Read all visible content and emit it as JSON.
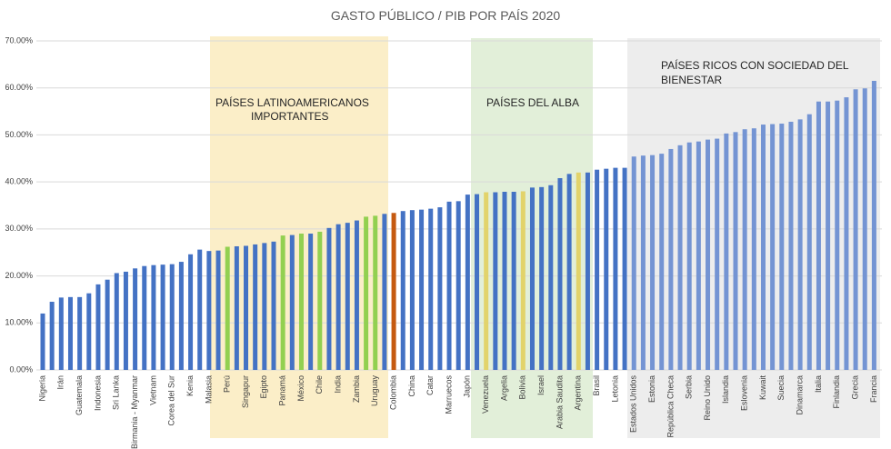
{
  "chart_data": {
    "type": "bar",
    "title": "GASTO PÚBLICO / PIB POR PAÍS 2020",
    "categories": [
      "Nigeria",
      null,
      "Irán",
      null,
      "Guatemala",
      null,
      "Indonesia",
      null,
      "Sri Lanka",
      null,
      "Birmania - Myanmar",
      null,
      "Vietnam",
      null,
      "Corea del Sur",
      null,
      "Kenia",
      null,
      "Malasia",
      null,
      "Perú",
      null,
      "Singapur",
      null,
      "Egipto",
      null,
      "Panamá",
      null,
      "México",
      null,
      "Chile",
      null,
      "India",
      null,
      "Zambia",
      null,
      "Uruguay",
      null,
      "Colombia",
      null,
      "China",
      null,
      "Catar",
      null,
      "Marruecos",
      null,
      "Japón",
      null,
      "Venezuela",
      null,
      "Argelia",
      null,
      "Bolivia",
      null,
      "Israel",
      null,
      "Arabia Saudita",
      null,
      "Argentina",
      null,
      "Brasil",
      null,
      "Letonia",
      null,
      "Estados Unidos",
      null,
      "Estonia",
      null,
      "República Checa",
      null,
      "Serbia",
      null,
      "Reino Unido",
      null,
      "Islandia",
      null,
      "Eslovenia",
      null,
      "Kuwait",
      null,
      "Suecia",
      null,
      "Dinamarca",
      null,
      "Italia",
      null,
      "Finlandia",
      null,
      "Grecia",
      null,
      "Francia"
    ],
    "values": [
      12.0,
      14.5,
      15.4,
      15.5,
      15.5,
      16.3,
      18.2,
      19.2,
      20.6,
      20.9,
      21.6,
      22.1,
      22.3,
      22.4,
      22.5,
      23.0,
      24.6,
      25.6,
      25.3,
      25.4,
      26.2,
      26.3,
      26.4,
      26.7,
      27.0,
      27.3,
      28.6,
      28.7,
      29.0,
      29.0,
      29.4,
      30.2,
      31.0,
      31.3,
      31.8,
      32.6,
      32.8,
      33.2,
      33.4,
      33.8,
      34.0,
      34.1,
      34.3,
      34.6,
      35.8,
      35.9,
      37.3,
      37.4,
      37.8,
      37.8,
      37.9,
      37.9,
      38.0,
      38.8,
      38.9,
      39.3,
      40.8,
      41.7,
      42.0,
      42.0,
      42.6,
      42.8,
      43.0,
      43.0,
      45.4,
      45.6,
      45.7,
      46.0,
      47.0,
      47.8,
      48.4,
      48.6,
      49.0,
      49.2,
      50.3,
      50.6,
      51.2,
      51.4,
      52.2,
      52.3,
      52.4,
      52.8,
      53.3,
      54.4,
      57.1,
      57.1,
      57.3,
      58.0,
      59.7,
      59.9,
      61.5
    ],
    "colors": [
      "#4472c4",
      "#4472c4",
      "#4472c4",
      "#4472c4",
      "#4472c4",
      "#4472c4",
      "#4472c4",
      "#4472c4",
      "#4472c4",
      "#4472c4",
      "#4472c4",
      "#4472c4",
      "#4472c4",
      "#4472c4",
      "#4472c4",
      "#4472c4",
      "#4472c4",
      "#4472c4",
      "#4472c4",
      "#4472c4",
      "#92d050",
      "#4472c4",
      "#4472c4",
      "#4472c4",
      "#4472c4",
      "#4472c4",
      "#92d050",
      "#4472c4",
      "#92d050",
      "#4472c4",
      "#92d050",
      "#4472c4",
      "#4472c4",
      "#4472c4",
      "#4472c4",
      "#92d050",
      "#92d050",
      "#4472c4",
      "#c55a11",
      "#4472c4",
      "#4472c4",
      "#4472c4",
      "#4472c4",
      "#4472c4",
      "#4472c4",
      "#4472c4",
      "#4472c4",
      "#4472c4",
      "#e2d36b",
      "#4472c4",
      "#4472c4",
      "#4472c4",
      "#e2d36b",
      "#4472c4",
      "#4472c4",
      "#4472c4",
      "#4472c4",
      "#4472c4",
      "#e2d36b",
      "#4472c4",
      "#4472c4",
      "#4472c4",
      "#4472c4",
      "#4472c4",
      "#7494d3",
      "#7494d3",
      "#7494d3",
      "#7494d3",
      "#7494d3",
      "#7494d3",
      "#7494d3",
      "#7494d3",
      "#7494d3",
      "#7494d3",
      "#7494d3",
      "#7494d3",
      "#7494d3",
      "#7494d3",
      "#7494d3",
      "#7494d3",
      "#7494d3",
      "#7494d3",
      "#7494d3",
      "#7494d3",
      "#7494d3",
      "#7494d3",
      "#7494d3",
      "#7494d3",
      "#7494d3",
      "#7494d3",
      "#7494d3"
    ],
    "ylim": [
      0,
      70
    ],
    "yticks": [
      {
        "value": 0,
        "label": "0.00%"
      },
      {
        "value": 10,
        "label": "10.00%"
      },
      {
        "value": 20,
        "label": "20.00%"
      },
      {
        "value": 30,
        "label": "30.00%"
      },
      {
        "value": 40,
        "label": "40.00%"
      },
      {
        "value": 50,
        "label": "50.00%"
      },
      {
        "value": 60,
        "label": "60.00%"
      },
      {
        "value": 70,
        "label": "70.00%"
      }
    ],
    "grid": true,
    "annotations": [
      [
        "PAÍSES LATINOAMERICANOS",
        "IMPORTANTES"
      ],
      [
        "PAÍSES DEL ALBA"
      ],
      [
        "PAÍSES RICOS CON SOCIEDAD DEL",
        "BIENESTAR"
      ]
    ]
  }
}
